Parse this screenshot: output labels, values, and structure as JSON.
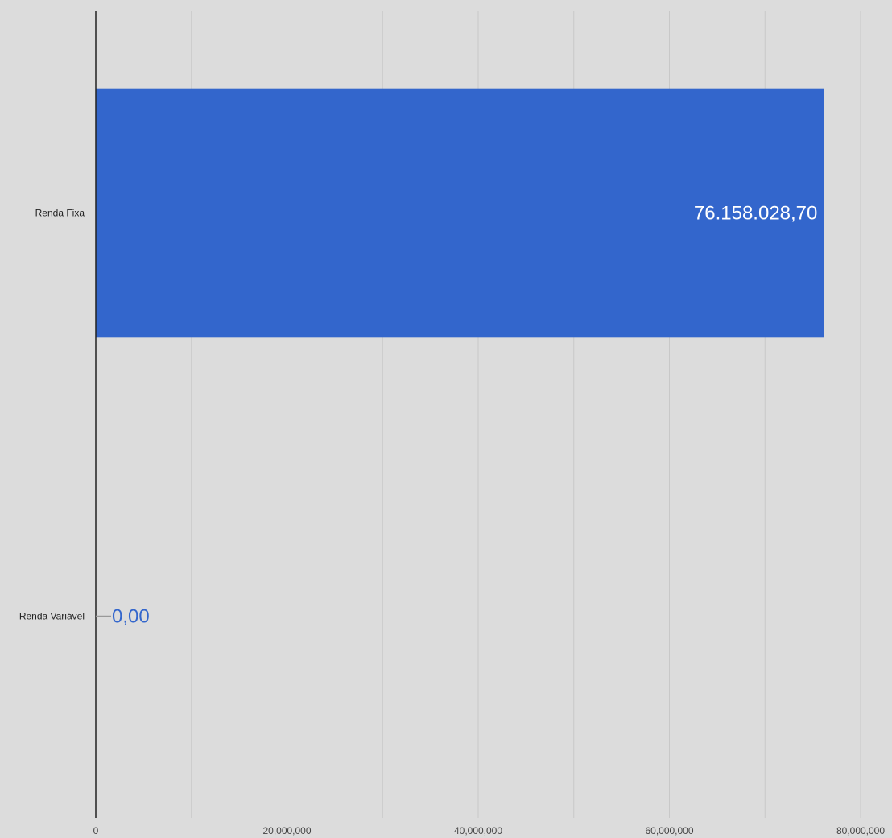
{
  "chart_data": {
    "type": "bar",
    "orientation": "horizontal",
    "categories": [
      "Renda Fixa",
      "Renda Variável"
    ],
    "values": [
      76158028.7,
      0
    ],
    "data_labels": [
      "76.158.028,70",
      "0,00"
    ],
    "xlim": [
      0,
      80000000
    ],
    "major_ticks": [
      0,
      20000000,
      40000000,
      60000000,
      80000000
    ],
    "tick_labels": [
      "0",
      "20,000,000",
      "40,000,000",
      "60,000,000",
      "80,000,000"
    ],
    "minor_gridlines": [
      10000000,
      30000000,
      50000000,
      70000000
    ],
    "grid": true,
    "legend": "none",
    "title": "",
    "xlabel": "",
    "ylabel": "",
    "colors": {
      "background": "#dcdcdc",
      "bar": "#3366cc",
      "gridline": "#c8c8c8",
      "axis": "#222222",
      "label_inside": "#ffffff",
      "label_outside": "#3366cc",
      "leader_line": "#999999"
    }
  }
}
